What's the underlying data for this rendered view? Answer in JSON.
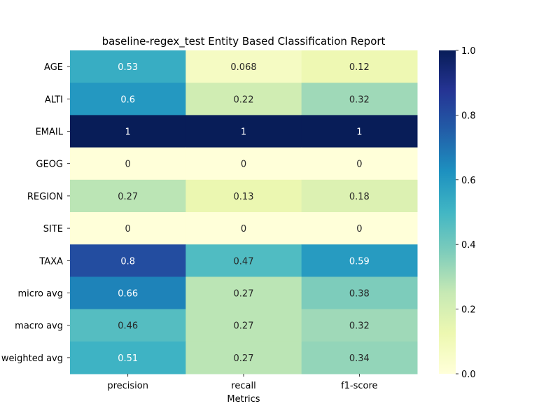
{
  "chart_data": {
    "type": "heatmap",
    "title": "baseline-regex_test Entity Based Classification Report",
    "xlabel": "Metrics",
    "ylabel": "",
    "columns": [
      "precision",
      "recall",
      "f1-score"
    ],
    "rows": [
      "AGE",
      "ALTI",
      "EMAIL",
      "GEOG",
      "REGION",
      "SITE",
      "TAXA",
      "micro avg",
      "macro avg",
      "weighted avg"
    ],
    "values": [
      [
        0.53,
        0.068,
        0.12
      ],
      [
        0.6,
        0.22,
        0.32
      ],
      [
        1,
        1,
        1
      ],
      [
        0,
        0,
        0
      ],
      [
        0.27,
        0.13,
        0.18
      ],
      [
        0,
        0,
        0
      ],
      [
        0.8,
        0.47,
        0.59
      ],
      [
        0.66,
        0.27,
        0.38
      ],
      [
        0.46,
        0.27,
        0.32
      ],
      [
        0.51,
        0.27,
        0.34
      ]
    ],
    "value_labels": [
      [
        "0.53",
        "0.068",
        "0.12"
      ],
      [
        "0.6",
        "0.22",
        "0.32"
      ],
      [
        "1",
        "1",
        "1"
      ],
      [
        "0",
        "0",
        "0"
      ],
      [
        "0.27",
        "0.13",
        "0.18"
      ],
      [
        "0",
        "0",
        "0"
      ],
      [
        "0.8",
        "0.47",
        "0.59"
      ],
      [
        "0.66",
        "0.27",
        "0.38"
      ],
      [
        "0.46",
        "0.27",
        "0.32"
      ],
      [
        "0.51",
        "0.27",
        "0.34"
      ]
    ],
    "colormap": "YlGnBu",
    "vmin": 0,
    "vmax": 1,
    "colorbar_ticks": [
      "0.0",
      "0.2",
      "0.4",
      "0.6",
      "0.8",
      "1.0"
    ],
    "grid": false
  }
}
